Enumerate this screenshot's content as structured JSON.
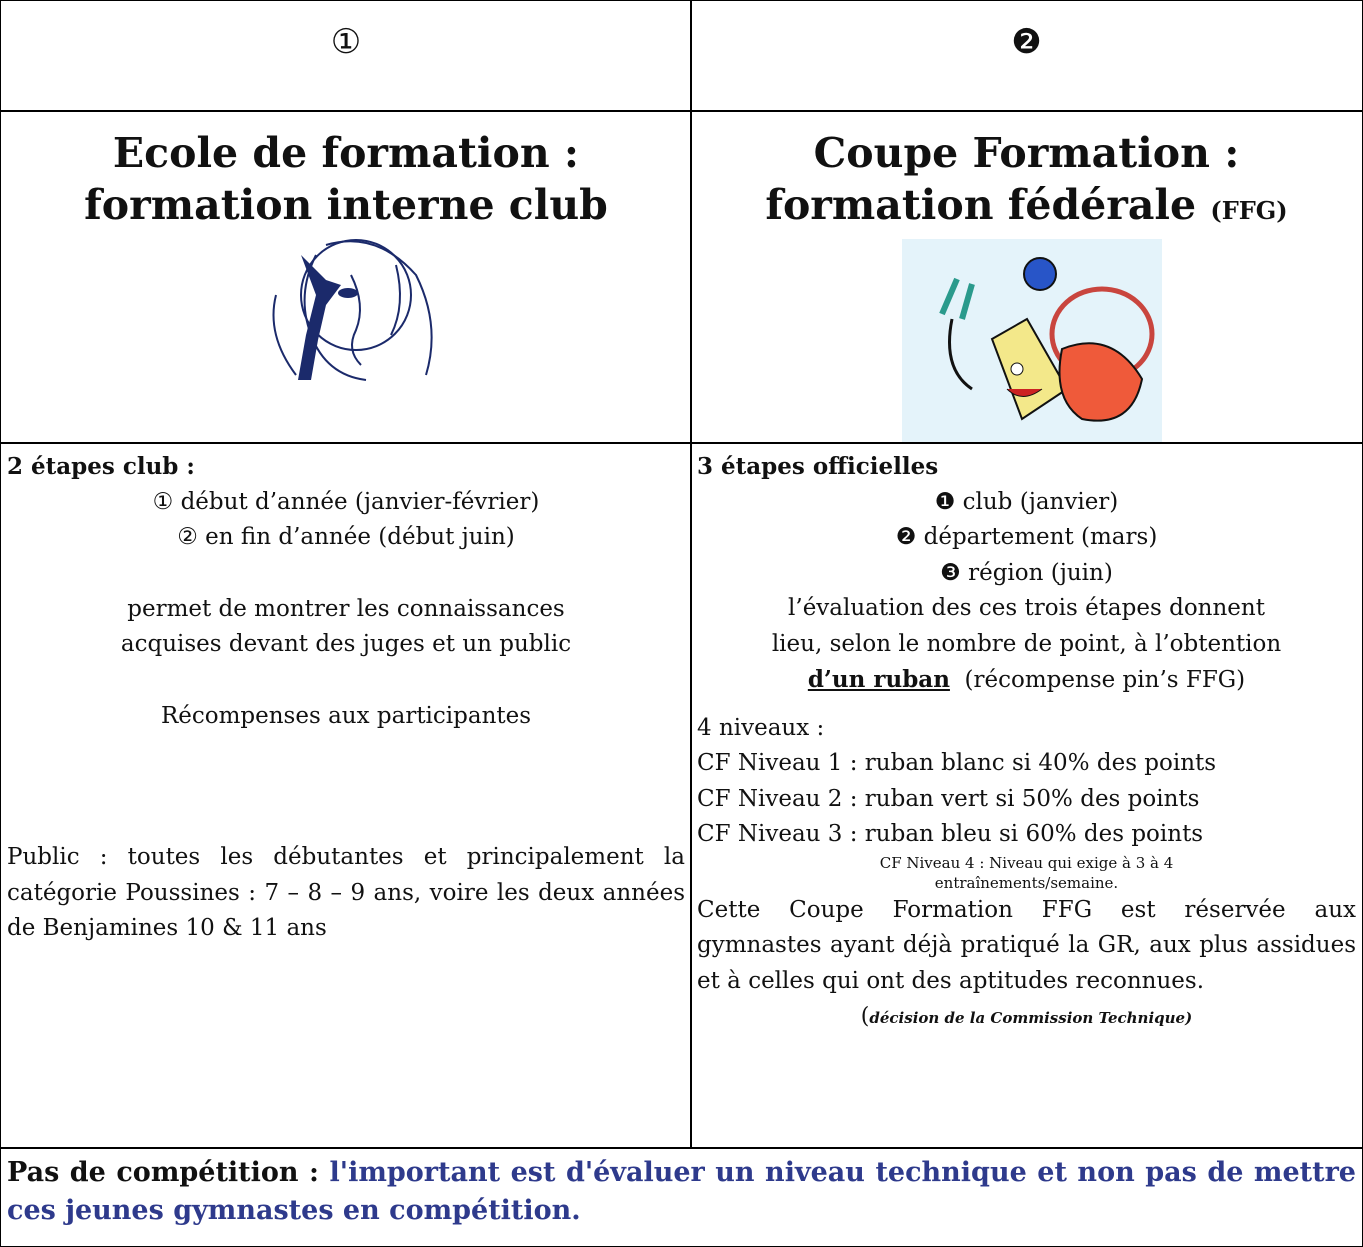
{
  "table": {
    "header": [
      "①",
      "❷"
    ],
    "left": {
      "title_lines": [
        "Ecole de formation :",
        "formation interne club"
      ],
      "steps_heading": "2 étapes club :",
      "steps": [
        "① début d’année (janvier-février)",
        "② en fin d’année (début juin)"
      ],
      "purpose_lines": [
        "permet de montrer les connaissances",
        "acquises devant  des juges et un public"
      ],
      "rewards": "Récompenses aux participantes",
      "audience": "Public : toutes les débutantes et principalement la catégorie Poussines : 7 – 8 – 9  ans, voire les deux années de Benjamines 10 & 11 ans"
    },
    "right": {
      "title_lines": [
        "Coupe Formation :",
        "formation fédérale"
      ],
      "title_suffix": "(FFG)",
      "steps_heading": "3 étapes officielles",
      "steps": [
        "❶ club (janvier)",
        "❷ département (mars)",
        "❸ région (juin)"
      ],
      "evaluation_lines": [
        "l’évaluation des ces trois étapes donnent",
        "lieu, selon le nombre de point, à l’obtention"
      ],
      "ribbon_emphasis": "d’un ruban",
      "ribbon_note": "  (récompense pin’s FFG)",
      "levels_heading": "4 niveaux :",
      "levels": [
        "CF Niveau 1 : ruban blanc si 40% des points",
        "CF Niveau 2 : ruban vert si 50% des points",
        "CF Niveau 3 : ruban bleu si 60% des points"
      ],
      "level4_lines": [
        "CF Niveau 4 : Niveau qui exige à 3 à 4",
        "entraînements/semaine."
      ],
      "eligibility": "Cette Coupe Formation FFG est réservée aux gymnastes ayant déjà pratiqué la GR, aux plus assidues  et à celles  qui ont des aptitudes reconnues.",
      "decision_open": "(",
      "decision": "décision de la Commission Technique)"
    },
    "footer": {
      "lead": "Pas de compétition : ",
      "text": "l'important est d'évaluer un niveau technique et non pas de mettre ces jeunes gymnastes en compétition."
    }
  }
}
